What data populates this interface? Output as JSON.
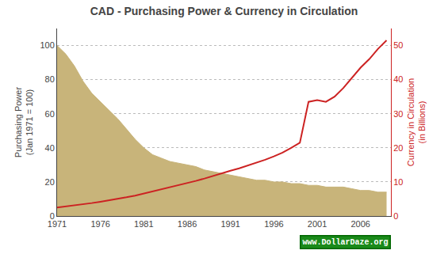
{
  "chart_data": {
    "type": "area",
    "title": "CAD - Purchasing Power & Currency in Circulation",
    "ylabel": "Purchasing Power\n(Jan 1971 = 100)",
    "y2label": "Currency in Circulation\n(in Billions)",
    "x": [
      1971,
      1972,
      1973,
      1974,
      1975,
      1976,
      1977,
      1978,
      1979,
      1980,
      1981,
      1982,
      1983,
      1984,
      1985,
      1986,
      1987,
      1988,
      1989,
      1990,
      1991,
      1992,
      1993,
      1994,
      1995,
      1996,
      1997,
      1998,
      1999,
      2000,
      2001,
      2002,
      2003,
      2004,
      2005,
      2006,
      2007,
      2008,
      2009
    ],
    "series": [
      {
        "type": "area",
        "color": "#c8b47a",
        "values": [
          100,
          95,
          88,
          79,
          72,
          67,
          62,
          57,
          51,
          45,
          40,
          36,
          34,
          32,
          31,
          30,
          29,
          27,
          26,
          25,
          24,
          23,
          22,
          21,
          21,
          20,
          20,
          19,
          19,
          18,
          18,
          17,
          17,
          17,
          16,
          15,
          15,
          14,
          14
        ]
      },
      {
        "type": "line",
        "color": "#cc2222",
        "axis": "y2",
        "values": [
          2.5,
          2.8,
          3.1,
          3.4,
          3.8,
          4.2,
          4.6,
          5.0,
          5.5,
          6.0,
          6.6,
          7.2,
          7.8,
          8.4,
          9.0,
          9.6,
          10.3,
          11.0,
          11.8,
          12.5,
          13.3,
          14.0,
          14.8,
          15.6,
          16.5,
          17.5,
          18.6,
          20.0,
          21.5,
          33.5,
          34.0,
          33.5,
          35.0,
          37.5,
          40.5,
          43.5,
          46.0,
          49.0,
          51.5
        ]
      }
    ],
    "xlim": [
      1971,
      2009.5
    ],
    "xticks": [
      1971,
      1976,
      1981,
      1986,
      1991,
      1996,
      2001,
      2006
    ],
    "ylim": [
      0,
      110
    ],
    "yticks": [
      0,
      20,
      40,
      60,
      80,
      100
    ],
    "y2lim": [
      0,
      55
    ],
    "y2ticks": [
      0,
      10,
      20,
      30,
      40,
      50
    ],
    "grid": true,
    "annotations": [
      {
        "text": "www.DollarDaze.org"
      }
    ]
  }
}
